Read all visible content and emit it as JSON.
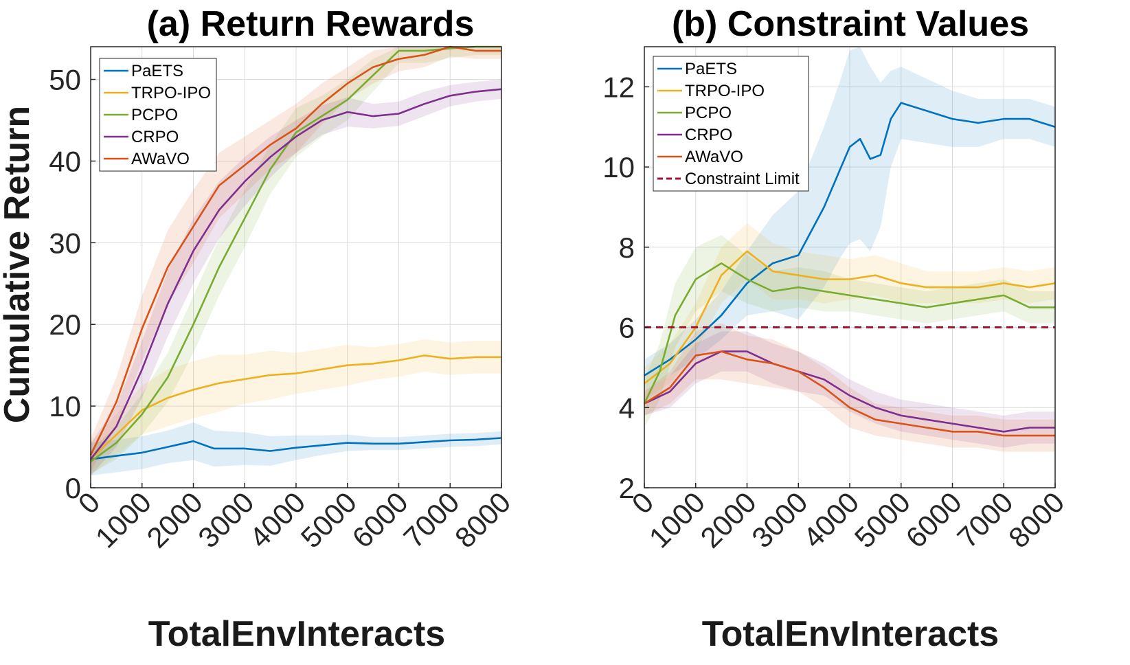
{
  "chart_data": [
    {
      "type": "line",
      "title": "(a) Return Rewards",
      "xlabel": "TotalEnvInteracts",
      "ylabel": "Cumulative Return",
      "xlim": [
        0,
        8000
      ],
      "ylim": [
        0,
        54
      ],
      "xticks": [
        0,
        1000,
        2000,
        3000,
        4000,
        5000,
        6000,
        7000,
        8000
      ],
      "yticks": [
        0,
        10,
        20,
        30,
        40,
        50
      ],
      "grid": true,
      "legend_position": "top-left",
      "legend": [
        "PaETS",
        "TRPO-IPO",
        "PCPO",
        "CRPO",
        "AWaVO"
      ],
      "series": [
        {
          "name": "PaETS",
          "color": "#0072BD",
          "x": [
            0,
            500,
            1000,
            1500,
            2000,
            2400,
            3000,
            3500,
            4000,
            4500,
            5000,
            5500,
            6000,
            6500,
            7000,
            7500,
            8000
          ],
          "y": [
            3.5,
            3.9,
            4.3,
            5.0,
            5.7,
            4.8,
            4.8,
            4.5,
            4.9,
            5.2,
            5.5,
            5.4,
            5.4,
            5.6,
            5.8,
            5.9,
            6.1
          ],
          "band": [
            2.0,
            2.0,
            2.0,
            2.0,
            2.3,
            2.2,
            2.0,
            1.8,
            1.5,
            1.2,
            1.0,
            0.8,
            0.8,
            0.8,
            0.8,
            0.8,
            0.8
          ]
        },
        {
          "name": "TRPO-IPO",
          "color": "#EDB120",
          "x": [
            0,
            500,
            1000,
            1500,
            2000,
            2500,
            3000,
            3500,
            4000,
            4500,
            5000,
            5500,
            6000,
            6500,
            7000,
            7500,
            8000
          ],
          "y": [
            3.5,
            6.5,
            9.5,
            11.0,
            12.0,
            12.8,
            13.3,
            13.8,
            14.0,
            14.5,
            15.0,
            15.2,
            15.6,
            16.2,
            15.8,
            16.0,
            16.0
          ],
          "band": [
            2.0,
            2.5,
            3.0,
            3.5,
            3.5,
            3.5,
            3.0,
            3.0,
            2.5,
            2.5,
            2.5,
            2.0,
            2.0,
            2.0,
            2.0,
            2.0,
            2.0
          ]
        },
        {
          "name": "PCPO",
          "color": "#77AC30",
          "x": [
            0,
            500,
            1000,
            1500,
            2000,
            2500,
            3000,
            3500,
            4000,
            4500,
            5000,
            5500,
            6000,
            6500,
            7000,
            7500,
            8000
          ],
          "y": [
            3.2,
            5.5,
            9.0,
            13.5,
            20.0,
            27.0,
            33.0,
            39.0,
            43.5,
            45.5,
            47.5,
            50.5,
            53.5,
            53.5,
            53.8,
            54.0,
            54.0
          ],
          "band": [
            1.5,
            2.0,
            2.5,
            3.0,
            3.5,
            3.5,
            3.5,
            3.0,
            3.0,
            2.5,
            2.5,
            2.0,
            1.5,
            1.5,
            1.2,
            1.0,
            1.0
          ]
        },
        {
          "name": "CRPO",
          "color": "#7E2F8E",
          "x": [
            0,
            500,
            1000,
            1500,
            2000,
            2500,
            3000,
            3500,
            4000,
            4500,
            5000,
            5500,
            6000,
            6500,
            7000,
            7500,
            8000
          ],
          "y": [
            3.5,
            7.5,
            14.5,
            22.5,
            29.0,
            34.0,
            37.5,
            40.5,
            43.0,
            45.0,
            46.0,
            45.5,
            45.8,
            47.0,
            48.0,
            48.5,
            48.8
          ],
          "band": [
            2.0,
            2.5,
            3.5,
            4.0,
            4.0,
            3.5,
            3.0,
            2.5,
            2.0,
            1.8,
            1.8,
            1.5,
            1.5,
            1.5,
            1.3,
            1.2,
            1.2
          ]
        },
        {
          "name": "AWaVO",
          "color": "#D95319",
          "x": [
            0,
            500,
            1000,
            1500,
            2000,
            2500,
            3000,
            3500,
            4000,
            4500,
            5000,
            5500,
            6000,
            6500,
            7000,
            7500,
            8000
          ],
          "y": [
            4.0,
            10.5,
            19.5,
            27.0,
            32.0,
            37.0,
            39.5,
            42.0,
            44.0,
            47.0,
            49.5,
            51.5,
            52.5,
            53.0,
            54.0,
            53.5,
            53.5
          ],
          "band": [
            2.0,
            3.0,
            4.0,
            4.5,
            4.5,
            4.0,
            3.5,
            3.0,
            3.0,
            2.5,
            2.0,
            2.0,
            1.5,
            1.5,
            1.2,
            1.0,
            1.0
          ]
        }
      ]
    },
    {
      "type": "line",
      "title": "(b) Constraint Values",
      "xlabel": "TotalEnvInteracts",
      "ylabel": "",
      "xlim": [
        0,
        8000
      ],
      "ylim": [
        2,
        13
      ],
      "xticks": [
        0,
        1000,
        2000,
        3000,
        4000,
        5000,
        6000,
        7000,
        8000
      ],
      "yticks": [
        2,
        4,
        6,
        8,
        10,
        12
      ],
      "grid": true,
      "legend_position": "top-left",
      "legend": [
        "PaETS",
        "TRPO-IPO",
        "PCPO",
        "CRPO",
        "AWaVO",
        "Constraint Limit"
      ],
      "constraint_limit": {
        "name": "Constraint Limit",
        "value": 6,
        "color": "#A2142F"
      },
      "series": [
        {
          "name": "PaETS",
          "color": "#0072BD",
          "x": [
            0,
            500,
            1000,
            1500,
            2000,
            2500,
            3000,
            3500,
            3800,
            4000,
            4200,
            4400,
            4600,
            4800,
            5000,
            5500,
            6000,
            6500,
            7000,
            7500,
            8000
          ],
          "y": [
            4.8,
            5.2,
            5.7,
            6.3,
            7.1,
            7.6,
            7.8,
            9.0,
            9.9,
            10.5,
            10.7,
            10.2,
            10.3,
            11.2,
            11.6,
            11.4,
            11.2,
            11.1,
            11.2,
            11.2,
            11.0
          ],
          "band": [
            0.4,
            0.4,
            0.5,
            0.6,
            0.8,
            1.2,
            1.6,
            2.0,
            2.2,
            2.4,
            2.5,
            2.3,
            1.8,
            1.2,
            0.9,
            0.8,
            0.7,
            0.6,
            0.5,
            0.5,
            0.5
          ]
        },
        {
          "name": "TRPO-IPO",
          "color": "#EDB120",
          "x": [
            0,
            500,
            1000,
            1500,
            2000,
            2500,
            3000,
            3500,
            4000,
            4500,
            5000,
            5500,
            6000,
            6500,
            7000,
            7500,
            8000
          ],
          "y": [
            4.6,
            5.1,
            6.0,
            7.3,
            7.9,
            7.4,
            7.3,
            7.2,
            7.2,
            7.3,
            7.1,
            7.0,
            7.0,
            7.0,
            7.1,
            7.0,
            7.1
          ],
          "band": [
            0.4,
            0.5,
            0.6,
            0.7,
            0.7,
            0.7,
            0.6,
            0.6,
            0.5,
            0.5,
            0.5,
            0.4,
            0.4,
            0.4,
            0.4,
            0.4,
            0.4
          ]
        },
        {
          "name": "PCPO",
          "color": "#77AC30",
          "x": [
            0,
            300,
            600,
            1000,
            1500,
            2000,
            2500,
            3000,
            3500,
            4000,
            4500,
            5000,
            5500,
            6000,
            6500,
            7000,
            7500,
            8000
          ],
          "y": [
            4.1,
            4.9,
            6.3,
            7.2,
            7.6,
            7.2,
            6.9,
            7.0,
            6.9,
            6.8,
            6.7,
            6.6,
            6.5,
            6.6,
            6.7,
            6.8,
            6.5,
            6.5
          ],
          "band": [
            0.6,
            0.7,
            0.8,
            0.8,
            0.7,
            0.6,
            0.5,
            0.5,
            0.5,
            0.4,
            0.4,
            0.4,
            0.4,
            0.4,
            0.4,
            0.4,
            0.4,
            0.4
          ]
        },
        {
          "name": "CRPO",
          "color": "#7E2F8E",
          "x": [
            0,
            500,
            1000,
            1500,
            2000,
            2500,
            3000,
            3500,
            4000,
            4500,
            5000,
            5500,
            6000,
            6500,
            7000,
            7500,
            8000
          ],
          "y": [
            4.1,
            4.4,
            5.1,
            5.4,
            5.4,
            5.1,
            4.9,
            4.7,
            4.3,
            4.0,
            3.8,
            3.7,
            3.6,
            3.5,
            3.4,
            3.5,
            3.5
          ],
          "band": [
            0.3,
            0.4,
            0.5,
            0.5,
            0.5,
            0.5,
            0.5,
            0.4,
            0.4,
            0.4,
            0.4,
            0.4,
            0.4,
            0.4,
            0.4,
            0.4,
            0.4
          ]
        },
        {
          "name": "AWaVO",
          "color": "#D95319",
          "x": [
            0,
            500,
            1000,
            1500,
            2000,
            2500,
            3000,
            3500,
            4000,
            4500,
            5000,
            5500,
            6000,
            6500,
            7000,
            7500,
            8000
          ],
          "y": [
            4.1,
            4.5,
            5.3,
            5.4,
            5.2,
            5.1,
            4.9,
            4.5,
            4.0,
            3.7,
            3.6,
            3.5,
            3.4,
            3.4,
            3.3,
            3.3,
            3.3
          ],
          "band": [
            0.3,
            0.4,
            0.6,
            0.7,
            0.6,
            0.6,
            0.5,
            0.5,
            0.5,
            0.4,
            0.4,
            0.4,
            0.4,
            0.4,
            0.4,
            0.4,
            0.4
          ]
        }
      ]
    }
  ]
}
